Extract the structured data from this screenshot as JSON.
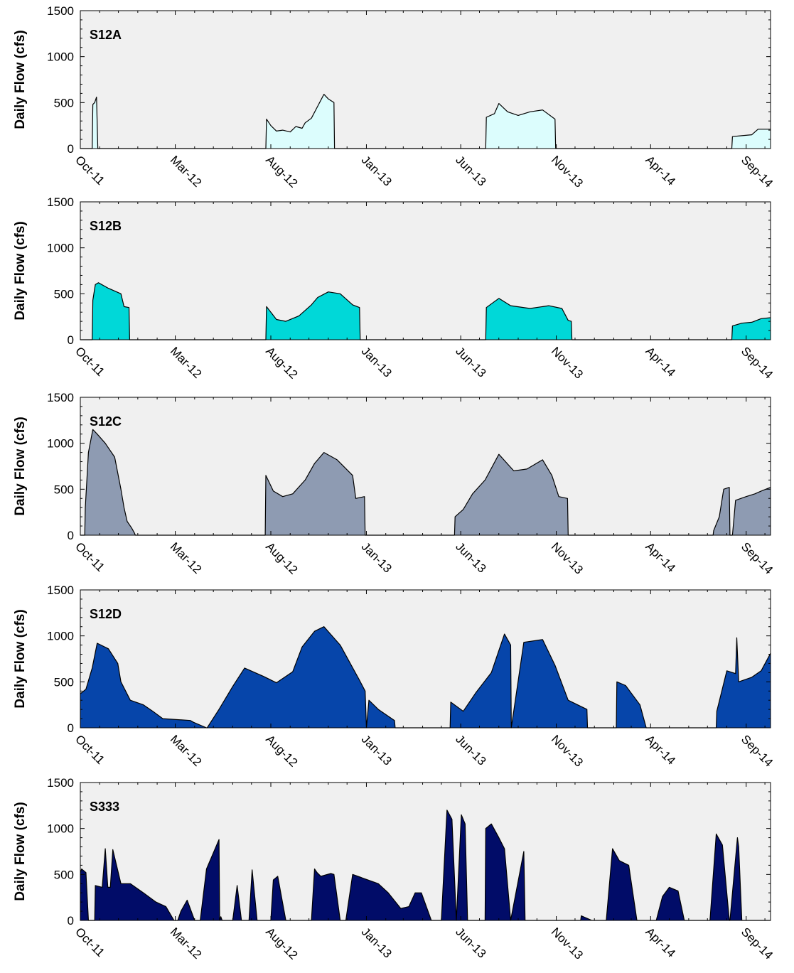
{
  "chart_data": [
    {
      "type": "area",
      "title": "S12A",
      "ylabel": "Daily Flow (cfs)",
      "ylim": [
        0,
        1500
      ],
      "yticks": [
        0,
        500,
        1000,
        1500
      ],
      "xlim": [
        "2011-10-01",
        "2014-10-10"
      ],
      "xtick_labels": [
        "Oct-11",
        "Mar-12",
        "Aug-12",
        "Jan-13",
        "Jun-13",
        "Nov-13",
        "Apr-14",
        "Sep-14"
      ],
      "fill_color": "#dcfdfd",
      "x": [
        "2011-10-01",
        "2011-10-20",
        "2011-10-21",
        "2011-10-24",
        "2011-10-27",
        "2011-10-29",
        "2011-10-30",
        "2012-07-24",
        "2012-07-25",
        "2012-08-01",
        "2012-08-10",
        "2012-08-20",
        "2012-09-01",
        "2012-09-10",
        "2012-09-20",
        "2012-09-25",
        "2012-10-05",
        "2012-10-15",
        "2012-10-25",
        "2012-11-01",
        "2012-11-10",
        "2012-11-11",
        "2013-07-11",
        "2013-07-12",
        "2013-07-25",
        "2013-08-01",
        "2013-08-15",
        "2013-09-01",
        "2013-09-20",
        "2013-10-10",
        "2013-10-30",
        "2013-10-31",
        "2014-08-09",
        "2014-08-10",
        "2014-08-25",
        "2014-09-10",
        "2014-09-20",
        "2014-10-10"
      ],
      "y": [
        0,
        0,
        480,
        500,
        560,
        0,
        0,
        0,
        320,
        250,
        190,
        200,
        180,
        240,
        220,
        280,
        330,
        460,
        590,
        540,
        500,
        0,
        0,
        340,
        380,
        490,
        400,
        360,
        400,
        420,
        320,
        0,
        0,
        130,
        140,
        150,
        210,
        210
      ]
    },
    {
      "type": "area",
      "title": "S12B",
      "ylabel": "Daily Flow (cfs)",
      "ylim": [
        0,
        1500
      ],
      "yticks": [
        0,
        500,
        1000,
        1500
      ],
      "xlim": [
        "2011-10-01",
        "2014-10-10"
      ],
      "xtick_labels": [
        "Oct-11",
        "Mar-12",
        "Aug-12",
        "Jan-13",
        "Jun-13",
        "Nov-13",
        "Apr-14",
        "Sep-14"
      ],
      "fill_color": "#00d8d8",
      "x": [
        "2011-10-01",
        "2011-10-20",
        "2011-10-21",
        "2011-10-25",
        "2011-10-30",
        "2011-11-15",
        "2011-12-05",
        "2011-12-10",
        "2011-12-18",
        "2011-12-19",
        "2012-07-24",
        "2012-07-25",
        "2012-08-10",
        "2012-08-25",
        "2012-09-15",
        "2012-10-05",
        "2012-10-15",
        "2012-11-01",
        "2012-11-20",
        "2012-12-10",
        "2012-12-21",
        "2012-12-22",
        "2013-07-11",
        "2013-07-12",
        "2013-08-01",
        "2013-08-20",
        "2013-09-20",
        "2013-10-20",
        "2013-11-10",
        "2013-11-20",
        "2013-11-25",
        "2013-11-26",
        "2014-08-09",
        "2014-08-10",
        "2014-08-25",
        "2014-09-10",
        "2014-09-25",
        "2014-10-10"
      ],
      "y": [
        0,
        0,
        430,
        600,
        620,
        560,
        500,
        360,
        350,
        0,
        0,
        360,
        220,
        200,
        260,
        380,
        460,
        520,
        500,
        380,
        350,
        0,
        0,
        350,
        450,
        370,
        340,
        370,
        340,
        210,
        200,
        0,
        0,
        150,
        180,
        190,
        230,
        240
      ]
    },
    {
      "type": "area",
      "title": "S12C",
      "ylabel": "Daily Flow (cfs)",
      "ylim": [
        0,
        1500
      ],
      "yticks": [
        0,
        500,
        1000,
        1500
      ],
      "xlim": [
        "2011-10-01",
        "2014-10-10"
      ],
      "xtick_labels": [
        "Oct-11",
        "Mar-12",
        "Aug-12",
        "Jan-13",
        "Jun-13",
        "Nov-13",
        "Apr-14",
        "Sep-14"
      ],
      "fill_color": "#8e9bb2",
      "x": [
        "2011-10-01",
        "2011-10-08",
        "2011-10-09",
        "2011-10-14",
        "2011-10-21",
        "2011-10-28",
        "2011-11-10",
        "2011-11-25",
        "2011-12-05",
        "2011-12-10",
        "2011-12-15",
        "2011-12-22",
        "2011-12-27",
        "2011-12-28",
        "2012-07-23",
        "2012-07-24",
        "2012-08-05",
        "2012-08-20",
        "2012-09-05",
        "2012-09-25",
        "2012-10-10",
        "2012-10-25",
        "2012-11-15",
        "2012-12-10",
        "2012-12-15",
        "2012-12-29",
        "2012-12-30",
        "2013-05-22",
        "2013-05-23",
        "2013-06-05",
        "2013-06-20",
        "2013-07-10",
        "2013-08-01",
        "2013-08-25",
        "2013-09-15",
        "2013-10-10",
        "2013-10-25",
        "2013-11-05",
        "2013-11-19",
        "2013-11-20",
        "2014-07-10",
        "2014-07-11",
        "2014-07-20",
        "2014-07-27",
        "2014-08-05",
        "2014-08-06",
        "2014-08-10",
        "2014-08-15",
        "2014-09-01",
        "2014-09-15",
        "2014-09-25",
        "2014-10-10"
      ],
      "y": [
        0,
        0,
        300,
        900,
        1150,
        1100,
        1000,
        850,
        500,
        300,
        150,
        80,
        20,
        0,
        0,
        650,
        480,
        420,
        450,
        600,
        780,
        900,
        820,
        650,
        400,
        420,
        0,
        0,
        200,
        280,
        450,
        600,
        880,
        700,
        720,
        820,
        650,
        420,
        400,
        0,
        0,
        50,
        200,
        500,
        520,
        0,
        0,
        380,
        420,
        450,
        480,
        520
      ]
    },
    {
      "type": "area",
      "title": "S12D",
      "ylabel": "Daily Flow (cfs)",
      "ylim": [
        0,
        1500
      ],
      "yticks": [
        0,
        500,
        1000,
        1500
      ],
      "xlim": [
        "2011-10-01",
        "2014-10-10"
      ],
      "xtick_labels": [
        "Oct-11",
        "Mar-12",
        "Aug-12",
        "Jan-13",
        "Jun-13",
        "Nov-13",
        "Apr-14",
        "Sep-14"
      ],
      "fill_color": "#0645aa",
      "x": [
        "2011-10-01",
        "2011-10-10",
        "2011-10-20",
        "2011-10-28",
        "2011-11-15",
        "2011-11-30",
        "2011-12-05",
        "2011-12-20",
        "2012-01-10",
        "2012-01-25",
        "2012-02-10",
        "2012-03-25",
        "2012-03-30",
        "2012-04-20",
        "2012-04-21",
        "2012-05-10",
        "2012-06-01",
        "2012-06-20",
        "2012-07-20",
        "2012-08-10",
        "2012-09-05",
        "2012-09-20",
        "2012-10-10",
        "2012-10-25",
        "2012-11-20",
        "2012-12-20",
        "2012-12-30",
        "2013-01-01",
        "2013-01-05",
        "2013-01-20",
        "2013-02-15",
        "2013-02-16",
        "2013-05-15",
        "2013-05-16",
        "2013-06-05",
        "2013-06-25",
        "2013-07-20",
        "2013-08-10",
        "2013-08-20",
        "2013-08-21",
        "2013-09-10",
        "2013-10-10",
        "2013-10-30",
        "2013-11-20",
        "2013-12-20",
        "2013-12-21",
        "2014-02-05",
        "2014-02-06",
        "2014-02-20",
        "2014-03-15",
        "2014-03-25",
        "2014-03-26",
        "2014-07-15",
        "2014-07-16",
        "2014-08-01",
        "2014-08-15",
        "2014-08-17",
        "2014-08-20",
        "2014-09-10",
        "2014-09-25",
        "2014-10-10"
      ],
      "y": [
        370,
        420,
        650,
        920,
        860,
        700,
        500,
        300,
        250,
        180,
        100,
        80,
        60,
        0,
        0,
        200,
        450,
        650,
        560,
        490,
        610,
        880,
        1050,
        1100,
        900,
        530,
        400,
        0,
        300,
        200,
        80,
        0,
        0,
        280,
        180,
        380,
        600,
        1020,
        900,
        0,
        930,
        960,
        680,
        300,
        200,
        0,
        0,
        500,
        460,
        250,
        0,
        0,
        0,
        180,
        620,
        590,
        980,
        500,
        550,
        620,
        810
      ]
    },
    {
      "type": "area",
      "title": "S333",
      "ylabel": "Daily Flow (cfs)",
      "ylim": [
        0,
        1500
      ],
      "yticks": [
        0,
        500,
        1000,
        1500
      ],
      "xlim": [
        "2011-10-01",
        "2014-10-10"
      ],
      "xtick_labels": [
        "Oct-11",
        "Mar-12",
        "Aug-12",
        "Jan-13",
        "Jun-13",
        "Nov-13",
        "Apr-14",
        "Sep-14"
      ],
      "fill_color": "#010c68",
      "x": [
        "2011-10-01",
        "2011-10-03",
        "2011-10-10",
        "2011-10-14",
        "2011-10-15",
        "2011-10-24",
        "2011-10-25",
        "2011-11-05",
        "2011-11-10",
        "2011-11-14",
        "2011-11-18",
        "2011-11-22",
        "2011-12-05",
        "2011-12-20",
        "2012-01-10",
        "2012-01-30",
        "2012-02-15",
        "2012-02-28",
        "2012-03-05",
        "2012-03-10",
        "2012-03-20",
        "2012-04-01",
        "2012-04-10",
        "2012-04-20",
        "2012-05-10",
        "2012-05-11",
        "2012-05-13",
        "2012-05-15",
        "2012-05-20",
        "2012-05-23",
        "2012-05-24",
        "2012-06-01",
        "2012-06-08",
        "2012-06-15",
        "2012-06-20",
        "2012-06-27",
        "2012-07-02",
        "2012-07-10",
        "2012-07-18",
        "2012-07-20",
        "2012-08-01",
        "2012-08-05",
        "2012-08-12",
        "2012-08-25",
        "2012-09-08",
        "2012-09-09",
        "2012-09-15",
        "2012-09-21",
        "2012-09-25",
        "2012-10-05",
        "2012-10-10",
        "2012-10-14",
        "2012-10-20",
        "2012-11-05",
        "2012-11-10",
        "2012-11-20",
        "2012-11-28",
        "2012-11-29",
        "2012-12-10",
        "2013-01-20",
        "2013-02-05",
        "2013-02-25",
        "2013-03-10",
        "2013-03-20",
        "2013-03-30",
        "2013-04-15",
        "2013-05-01",
        "2013-05-10",
        "2013-05-18",
        "2013-05-25",
        "2013-06-02",
        "2013-06-08",
        "2013-06-12",
        "2013-06-15",
        "2013-06-20",
        "2013-06-30",
        "2013-07-10",
        "2013-07-11",
        "2013-07-20",
        "2013-08-01",
        "2013-08-10",
        "2013-08-20",
        "2013-09-10",
        "2013-09-12",
        "2013-09-25",
        "2013-10-05",
        "2013-10-08",
        "2013-10-09",
        "2013-12-10",
        "2013-12-11",
        "2013-12-28",
        "2014-01-05",
        "2014-01-15",
        "2014-01-20",
        "2014-01-30",
        "2014-02-10",
        "2014-02-25",
        "2014-03-10",
        "2014-03-20",
        "2014-03-22",
        "2014-04-05",
        "2014-04-10",
        "2014-04-20",
        "2014-05-01",
        "2014-05-15",
        "2014-05-25",
        "2014-06-10",
        "2014-06-12",
        "2014-06-22",
        "2014-06-26",
        "2014-07-05",
        "2014-07-15",
        "2014-07-25",
        "2014-08-05",
        "2014-08-06",
        "2014-08-18",
        "2014-08-20",
        "2014-08-25",
        "2014-09-01",
        "2014-09-05",
        "2014-09-10",
        "2014-09-15",
        "2014-09-25",
        "2014-09-30",
        "2014-10-10"
      ],
      "y": [
        520,
        560,
        520,
        0,
        0,
        0,
        380,
        360,
        780,
        360,
        360,
        770,
        400,
        400,
        300,
        200,
        150,
        0,
        0,
        100,
        220,
        0,
        0,
        560,
        880,
        0,
        40,
        0,
        0,
        0,
        0,
        0,
        380,
        0,
        0,
        0,
        550,
        0,
        0,
        0,
        0,
        440,
        480,
        0,
        0,
        0,
        0,
        0,
        0,
        0,
        560,
        520,
        480,
        510,
        500,
        0,
        0,
        0,
        500,
        400,
        300,
        130,
        150,
        300,
        300,
        0,
        0,
        1200,
        1100,
        0,
        1150,
        1050,
        0,
        0,
        0,
        0,
        0,
        1000,
        1050,
        900,
        780,
        0,
        750,
        0,
        0,
        0,
        0,
        0,
        0,
        50,
        0,
        0,
        0,
        0,
        780,
        650,
        600,
        0,
        0,
        0,
        0,
        0,
        260,
        360,
        320,
        0,
        0,
        0,
        0,
        0,
        0,
        940,
        820,
        0,
        0,
        900,
        800,
        0,
        0,
        0,
        0,
        0,
        0,
        0,
        0
      ]
    }
  ]
}
